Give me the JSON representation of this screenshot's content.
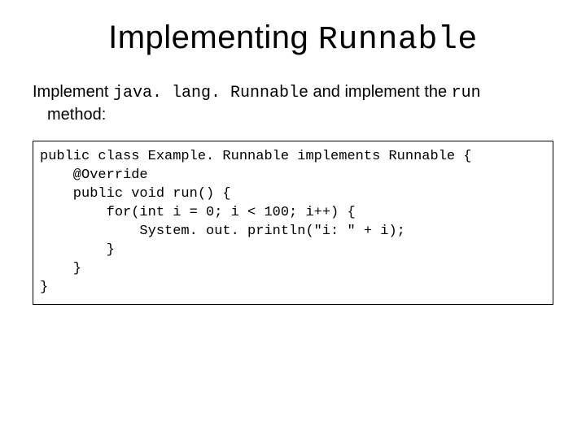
{
  "title": {
    "prefix": "Implementing ",
    "mono": "Runnable"
  },
  "subtitle": {
    "t1": "Implement ",
    "mono1": "java. lang. Runnable",
    "t2": " and implement the ",
    "mono2": "run",
    "t3": "method:"
  },
  "code": {
    "l1": "public class Example. Runnable implements Runnable {",
    "l2": "    @Override",
    "l3": "    public void run() {",
    "l4": "        for(int i = 0; i < 100; i++) {",
    "l5": "            System. out. println(\"i: \" + i);",
    "l6": "        }",
    "l7": "    }",
    "l8": "}"
  }
}
